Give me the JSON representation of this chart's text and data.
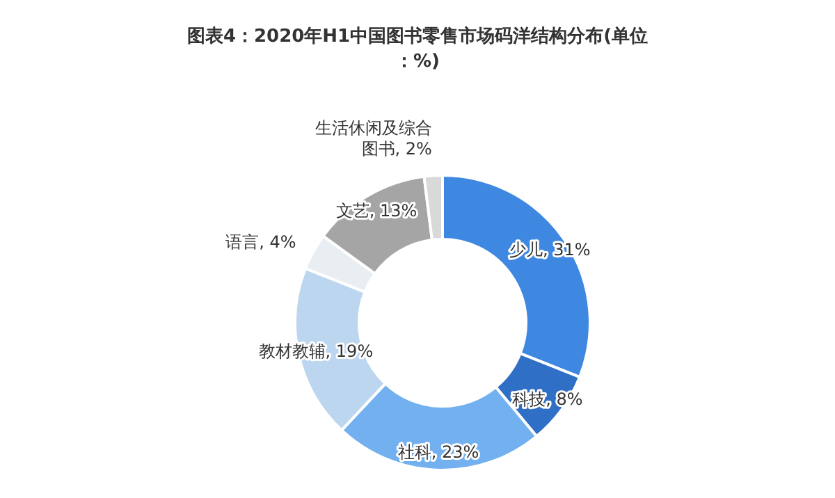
{
  "chart_data": {
    "type": "donut",
    "title": "图表4：2020年H1中国图书零售市场码洋结构分布(单位：%)",
    "categories": [
      "少儿",
      "科技",
      "社科",
      "教材教辅",
      "语言",
      "文艺",
      "生活休闲及综合图书"
    ],
    "values": [
      31,
      8,
      23,
      19,
      4,
      13,
      2
    ],
    "value_labels": [
      "31%",
      "8%",
      "23%",
      "19%",
      "4%",
      "13%",
      "2%"
    ],
    "colors": [
      "#3f88e2",
      "#2f6fc6",
      "#72b0f0",
      "#bcd6f0",
      "#e9eef3",
      "#a5a5a5",
      "#d9d9d9"
    ]
  }
}
